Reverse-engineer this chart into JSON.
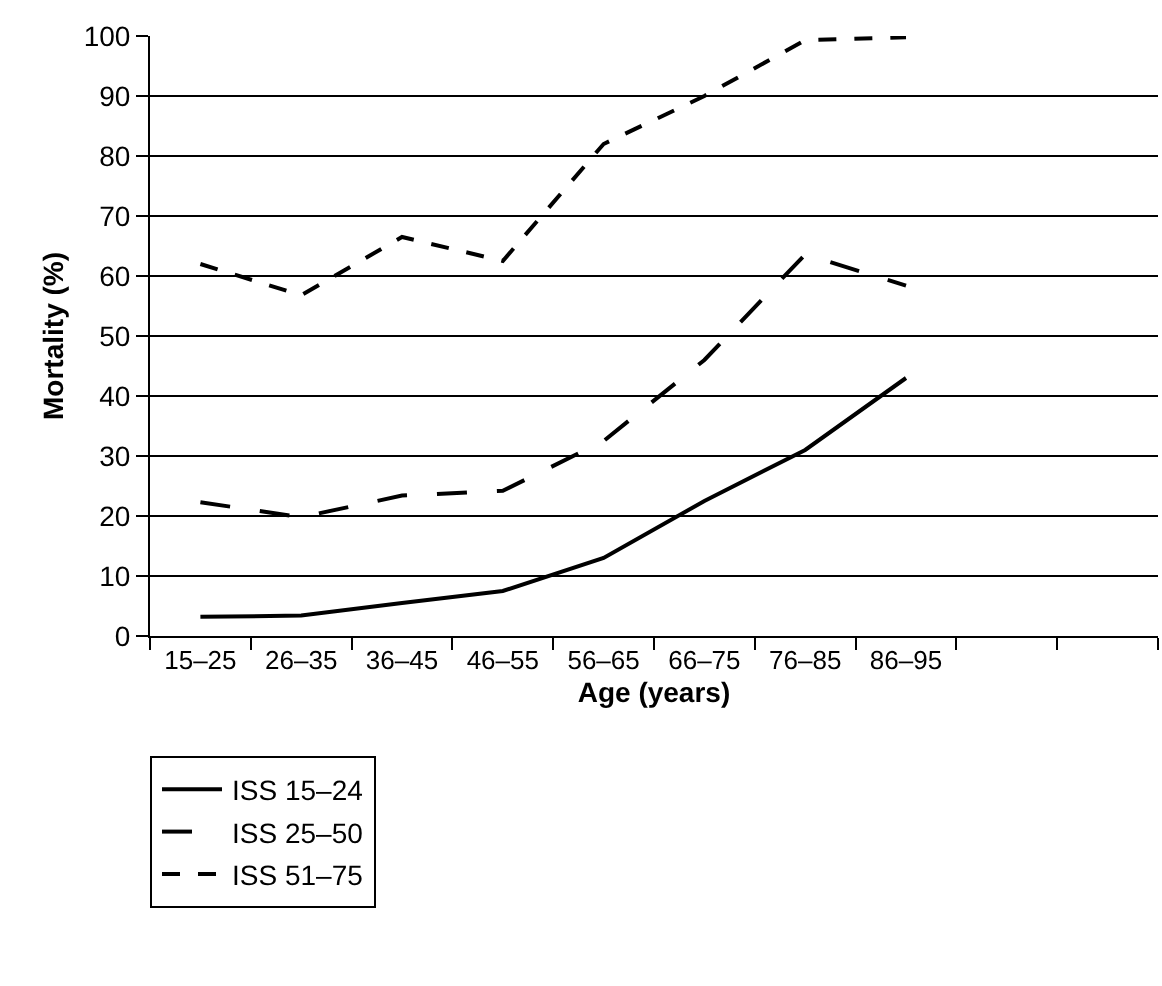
{
  "chart_data": {
    "type": "line",
    "xlabel": "Age (years)",
    "ylabel": "Mortality (%)",
    "categories": [
      "15–25",
      "26–35",
      "36–45",
      "46–55",
      "56–65",
      "66–75",
      "76–85",
      "86–95",
      null,
      null
    ],
    "series": [
      {
        "name": "ISS 15–24",
        "color": "#000000",
        "line_style": "solid",
        "values": [
          3.2,
          3.4,
          5.5,
          7.5,
          13,
          22.5,
          31,
          43,
          null,
          null
        ]
      },
      {
        "name": "ISS 25–50",
        "color": "#000000",
        "line_style": "dashed",
        "values": [
          22.3,
          19.8,
          23.4,
          24.2,
          32.5,
          46,
          63.6,
          58.4,
          null,
          null
        ]
      },
      {
        "name": "ISS 51–75",
        "color": "#000000",
        "line_style": "dotted",
        "values": [
          62,
          56.8,
          66.5,
          62.5,
          82,
          90,
          99.3,
          99.8,
          null,
          null
        ]
      }
    ],
    "ylim": [
      0,
      100
    ],
    "yticks": [
      0,
      10,
      20,
      30,
      40,
      50,
      60,
      70,
      80,
      90,
      100
    ],
    "grid": "y",
    "legend": "bottom left",
    "marker": "none"
  }
}
